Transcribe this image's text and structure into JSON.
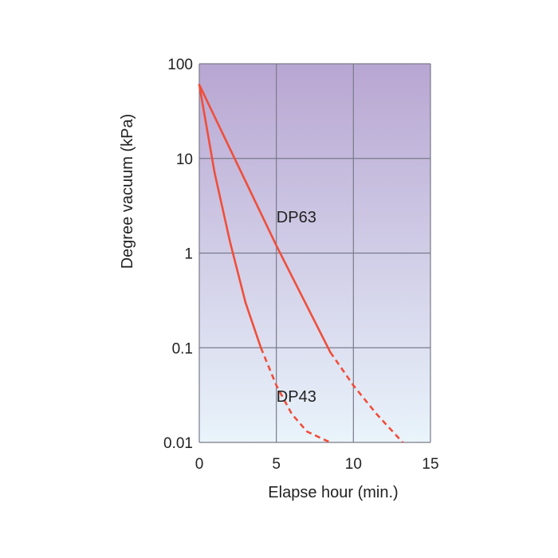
{
  "chart_data": {
    "type": "line",
    "xlabel": "Elapse hour (min.)",
    "ylabel": "Degree vacuum (kPa)",
    "xlim": [
      0,
      15
    ],
    "ylim": [
      0.01,
      100
    ],
    "yscale": "log",
    "grid": true,
    "x_ticks": [
      0,
      5,
      10,
      15
    ],
    "y_ticks": [
      100,
      10,
      1,
      0.1,
      0.01
    ],
    "y_tick_labels": [
      "100",
      "10",
      "1",
      "0.1",
      "0.01"
    ],
    "x_tick_labels": [
      "0",
      "5",
      "10",
      "15"
    ],
    "background_gradient": [
      "#b8a6d2",
      "#e9f4fb"
    ],
    "line_color": "#f04e3a",
    "series": [
      {
        "name": "DP63",
        "solid": [
          [
            0,
            60
          ],
          [
            5,
            1.2
          ],
          [
            8.5,
            0.09
          ]
        ],
        "dashed": [
          [
            8.5,
            0.09
          ],
          [
            10,
            0.04
          ],
          [
            11.5,
            0.02
          ],
          [
            13.2,
            0.01
          ]
        ]
      },
      {
        "name": "DP43",
        "solid": [
          [
            0,
            60
          ],
          [
            1,
            7
          ],
          [
            2,
            1.3
          ],
          [
            3,
            0.3
          ],
          [
            4,
            0.1
          ]
        ],
        "dashed": [
          [
            4,
            0.1
          ],
          [
            5,
            0.04
          ],
          [
            6,
            0.02
          ],
          [
            7,
            0.013
          ],
          [
            8.5,
            0.01
          ]
        ]
      }
    ],
    "series_label_positions": [
      [
        6.3,
        2.1
      ],
      [
        6.3,
        0.027
      ]
    ]
  }
}
